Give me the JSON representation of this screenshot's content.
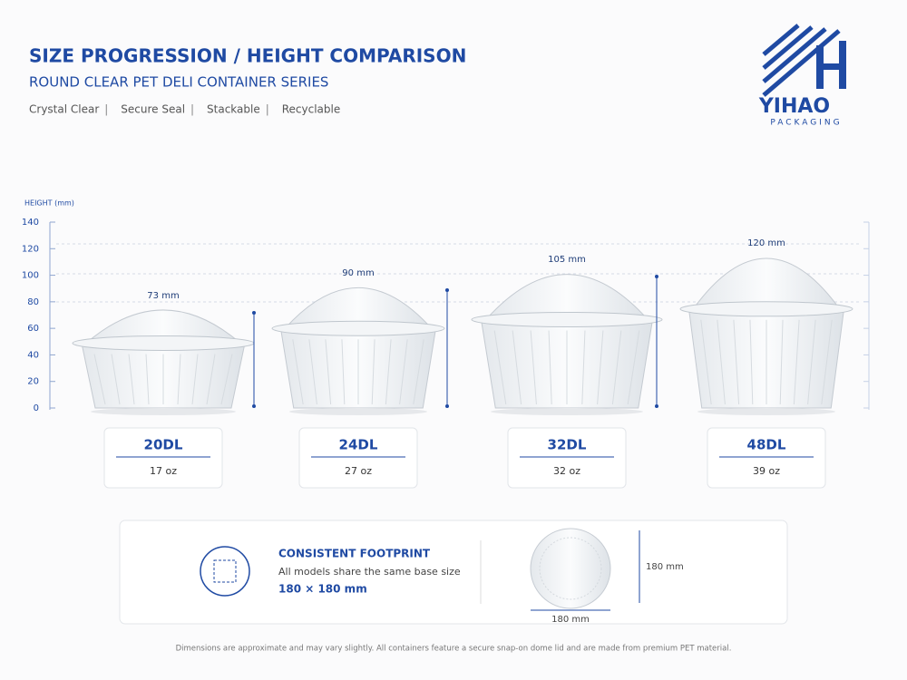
{
  "header": {
    "title": "SIZE PROGRESSION / HEIGHT COMPARISON",
    "subtitle": "ROUND CLEAR PET DELI CONTAINER SERIES",
    "features": [
      "Crystal Clear",
      "Secure Seal",
      "Stackable",
      "Recyclable"
    ]
  },
  "logo": {
    "name": "YIHAO",
    "tagline": "PACKAGING"
  },
  "height_axis": {
    "label": "HEIGHT (mm)",
    "ticks": [
      0,
      20,
      40,
      60,
      80,
      100,
      120,
      140
    ]
  },
  "products": [
    {
      "height": "73 mm",
      "model": "20DL",
      "volume": "17 oz"
    },
    {
      "height": "90 mm",
      "model": "24DL",
      "volume": "27 oz"
    },
    {
      "height": "105 mm",
      "model": "32DL",
      "volume": "32 oz"
    },
    {
      "height": "120 mm",
      "model": "48DL",
      "volume": "39 oz"
    }
  ],
  "footprint": {
    "title": "CONSISTENT FOOTPRINT",
    "text": "All models share the same base size",
    "size": "180 × 180 mm",
    "height_dim": "180 mm",
    "width_dim": "180 mm"
  },
  "footnote": "Dimensions are approximate and may vary slightly. All containers feature a secure snap-on dome lid and are made from premium PET material."
}
